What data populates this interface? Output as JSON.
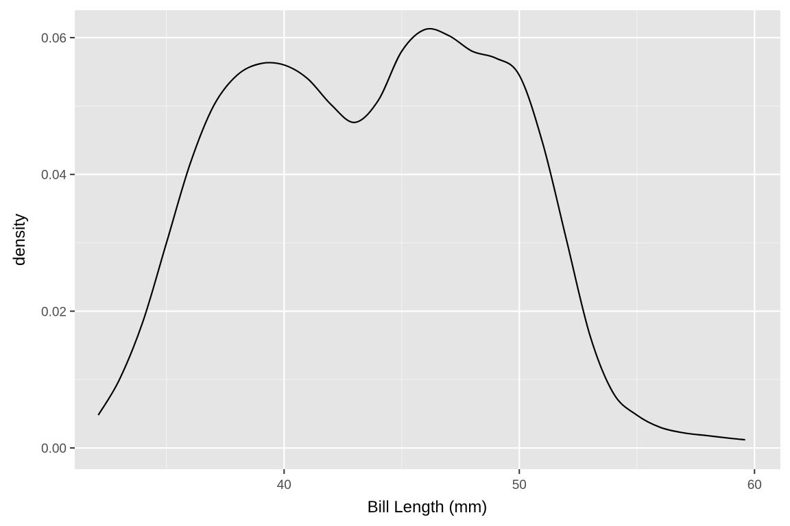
{
  "chart_data": {
    "type": "line",
    "title": "",
    "xlabel": "Bill Length (mm)",
    "ylabel": "density",
    "xlim": [
      31.1,
      61.1
    ],
    "ylim": [
      -0.0031,
      0.064
    ],
    "x_ticks": [
      {
        "value": 40,
        "label": "40"
      },
      {
        "value": 50,
        "label": "50"
      },
      {
        "value": 60,
        "label": "60"
      }
    ],
    "x_minor_ticks": [
      35,
      45,
      55
    ],
    "y_ticks": [
      {
        "value": 0.0,
        "label": "0.00"
      },
      {
        "value": 0.02,
        "label": "0.02"
      },
      {
        "value": 0.04,
        "label": "0.04"
      },
      {
        "value": 0.06,
        "label": "0.06"
      }
    ],
    "y_minor_ticks": [
      0.01,
      0.03,
      0.05
    ],
    "grid": true,
    "series": [
      {
        "x": [
          32.1,
          33.0,
          34.0,
          35.0,
          36.0,
          37.0,
          38.0,
          39.0,
          40.0,
          41.0,
          42.0,
          43.0,
          44.0,
          45.0,
          46.0,
          47.0,
          48.0,
          49.0,
          50.0,
          51.0,
          52.0,
          53.0,
          54.0,
          55.0,
          56.0,
          57.0,
          58.0,
          59.0,
          59.6
        ],
        "values": [
          0.0048,
          0.01,
          0.0185,
          0.03,
          0.0415,
          0.05,
          0.0545,
          0.0562,
          0.056,
          0.054,
          0.0502,
          0.0476,
          0.0508,
          0.058,
          0.0612,
          0.0603,
          0.058,
          0.057,
          0.0545,
          0.0445,
          0.0305,
          0.0165,
          0.008,
          0.0048,
          0.003,
          0.0022,
          0.0018,
          0.0014,
          0.0012
        ]
      }
    ]
  },
  "colors": {
    "panel_background": "#E5E5E5",
    "grid_major": "#FFFFFF",
    "grid_minor": "#F2F2F2",
    "line": "#000000",
    "tick_text": "#4D4D4D",
    "title_text": "#000000"
  }
}
